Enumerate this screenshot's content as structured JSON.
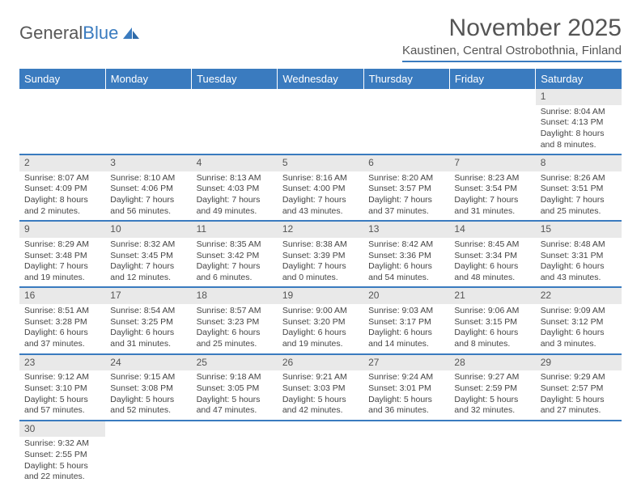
{
  "logo": {
    "prefix": "General",
    "suffix": "Blue"
  },
  "title": "November 2025",
  "location": "Kaustinen, Central Ostrobothnia, Finland",
  "colors": {
    "accent": "#3a7bbf",
    "header_bg": "#3a7bbf",
    "header_text": "#ffffff",
    "daynum_bg": "#e9e9e9",
    "text": "#444444"
  },
  "weekdays": [
    "Sunday",
    "Monday",
    "Tuesday",
    "Wednesday",
    "Thursday",
    "Friday",
    "Saturday"
  ],
  "weeks": [
    [
      null,
      null,
      null,
      null,
      null,
      null,
      {
        "day": "1",
        "sunrise": "Sunrise: 8:04 AM",
        "sunset": "Sunset: 4:13 PM",
        "daylight": "Daylight: 8 hours and 8 minutes."
      }
    ],
    [
      {
        "day": "2",
        "sunrise": "Sunrise: 8:07 AM",
        "sunset": "Sunset: 4:09 PM",
        "daylight": "Daylight: 8 hours and 2 minutes."
      },
      {
        "day": "3",
        "sunrise": "Sunrise: 8:10 AM",
        "sunset": "Sunset: 4:06 PM",
        "daylight": "Daylight: 7 hours and 56 minutes."
      },
      {
        "day": "4",
        "sunrise": "Sunrise: 8:13 AM",
        "sunset": "Sunset: 4:03 PM",
        "daylight": "Daylight: 7 hours and 49 minutes."
      },
      {
        "day": "5",
        "sunrise": "Sunrise: 8:16 AM",
        "sunset": "Sunset: 4:00 PM",
        "daylight": "Daylight: 7 hours and 43 minutes."
      },
      {
        "day": "6",
        "sunrise": "Sunrise: 8:20 AM",
        "sunset": "Sunset: 3:57 PM",
        "daylight": "Daylight: 7 hours and 37 minutes."
      },
      {
        "day": "7",
        "sunrise": "Sunrise: 8:23 AM",
        "sunset": "Sunset: 3:54 PM",
        "daylight": "Daylight: 7 hours and 31 minutes."
      },
      {
        "day": "8",
        "sunrise": "Sunrise: 8:26 AM",
        "sunset": "Sunset: 3:51 PM",
        "daylight": "Daylight: 7 hours and 25 minutes."
      }
    ],
    [
      {
        "day": "9",
        "sunrise": "Sunrise: 8:29 AM",
        "sunset": "Sunset: 3:48 PM",
        "daylight": "Daylight: 7 hours and 19 minutes."
      },
      {
        "day": "10",
        "sunrise": "Sunrise: 8:32 AM",
        "sunset": "Sunset: 3:45 PM",
        "daylight": "Daylight: 7 hours and 12 minutes."
      },
      {
        "day": "11",
        "sunrise": "Sunrise: 8:35 AM",
        "sunset": "Sunset: 3:42 PM",
        "daylight": "Daylight: 7 hours and 6 minutes."
      },
      {
        "day": "12",
        "sunrise": "Sunrise: 8:38 AM",
        "sunset": "Sunset: 3:39 PM",
        "daylight": "Daylight: 7 hours and 0 minutes."
      },
      {
        "day": "13",
        "sunrise": "Sunrise: 8:42 AM",
        "sunset": "Sunset: 3:36 PM",
        "daylight": "Daylight: 6 hours and 54 minutes."
      },
      {
        "day": "14",
        "sunrise": "Sunrise: 8:45 AM",
        "sunset": "Sunset: 3:34 PM",
        "daylight": "Daylight: 6 hours and 48 minutes."
      },
      {
        "day": "15",
        "sunrise": "Sunrise: 8:48 AM",
        "sunset": "Sunset: 3:31 PM",
        "daylight": "Daylight: 6 hours and 43 minutes."
      }
    ],
    [
      {
        "day": "16",
        "sunrise": "Sunrise: 8:51 AM",
        "sunset": "Sunset: 3:28 PM",
        "daylight": "Daylight: 6 hours and 37 minutes."
      },
      {
        "day": "17",
        "sunrise": "Sunrise: 8:54 AM",
        "sunset": "Sunset: 3:25 PM",
        "daylight": "Daylight: 6 hours and 31 minutes."
      },
      {
        "day": "18",
        "sunrise": "Sunrise: 8:57 AM",
        "sunset": "Sunset: 3:23 PM",
        "daylight": "Daylight: 6 hours and 25 minutes."
      },
      {
        "day": "19",
        "sunrise": "Sunrise: 9:00 AM",
        "sunset": "Sunset: 3:20 PM",
        "daylight": "Daylight: 6 hours and 19 minutes."
      },
      {
        "day": "20",
        "sunrise": "Sunrise: 9:03 AM",
        "sunset": "Sunset: 3:17 PM",
        "daylight": "Daylight: 6 hours and 14 minutes."
      },
      {
        "day": "21",
        "sunrise": "Sunrise: 9:06 AM",
        "sunset": "Sunset: 3:15 PM",
        "daylight": "Daylight: 6 hours and 8 minutes."
      },
      {
        "day": "22",
        "sunrise": "Sunrise: 9:09 AM",
        "sunset": "Sunset: 3:12 PM",
        "daylight": "Daylight: 6 hours and 3 minutes."
      }
    ],
    [
      {
        "day": "23",
        "sunrise": "Sunrise: 9:12 AM",
        "sunset": "Sunset: 3:10 PM",
        "daylight": "Daylight: 5 hours and 57 minutes."
      },
      {
        "day": "24",
        "sunrise": "Sunrise: 9:15 AM",
        "sunset": "Sunset: 3:08 PM",
        "daylight": "Daylight: 5 hours and 52 minutes."
      },
      {
        "day": "25",
        "sunrise": "Sunrise: 9:18 AM",
        "sunset": "Sunset: 3:05 PM",
        "daylight": "Daylight: 5 hours and 47 minutes."
      },
      {
        "day": "26",
        "sunrise": "Sunrise: 9:21 AM",
        "sunset": "Sunset: 3:03 PM",
        "daylight": "Daylight: 5 hours and 42 minutes."
      },
      {
        "day": "27",
        "sunrise": "Sunrise: 9:24 AM",
        "sunset": "Sunset: 3:01 PM",
        "daylight": "Daylight: 5 hours and 36 minutes."
      },
      {
        "day": "28",
        "sunrise": "Sunrise: 9:27 AM",
        "sunset": "Sunset: 2:59 PM",
        "daylight": "Daylight: 5 hours and 32 minutes."
      },
      {
        "day": "29",
        "sunrise": "Sunrise: 9:29 AM",
        "sunset": "Sunset: 2:57 PM",
        "daylight": "Daylight: 5 hours and 27 minutes."
      }
    ],
    [
      {
        "day": "30",
        "sunrise": "Sunrise: 9:32 AM",
        "sunset": "Sunset: 2:55 PM",
        "daylight": "Daylight: 5 hours and 22 minutes."
      },
      null,
      null,
      null,
      null,
      null,
      null
    ]
  ]
}
